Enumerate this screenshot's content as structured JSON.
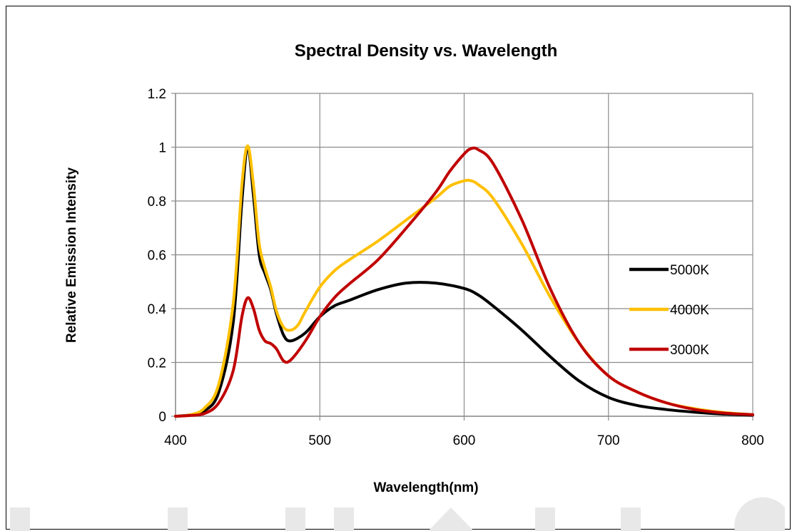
{
  "chart_data": {
    "type": "line",
    "title": "Spectral Density vs. Wavelength",
    "xlabel": "Wavelength(nm)",
    "ylabel": "Relative Emission Intensity",
    "xlim": [
      400,
      800
    ],
    "ylim": [
      0,
      1.2
    ],
    "x_ticks": [
      400,
      500,
      600,
      700,
      800
    ],
    "y_ticks": [
      0,
      0.2,
      0.4,
      0.6,
      0.8,
      1,
      1.2
    ],
    "x_tick_labels": [
      "400",
      "500",
      "600",
      "700",
      "800"
    ],
    "y_tick_labels": [
      "0",
      "0.2",
      "0.4",
      "0.6",
      "0.8",
      "1",
      "1.2"
    ],
    "grid": true,
    "legend_position": "right",
    "series": [
      {
        "name": "5000K",
        "color": "#000000",
        "points": [
          [
            400,
            0
          ],
          [
            410,
            0.005
          ],
          [
            420,
            0.02
          ],
          [
            430,
            0.09
          ],
          [
            440,
            0.35
          ],
          [
            446,
            0.8
          ],
          [
            450,
            1.0
          ],
          [
            454,
            0.82
          ],
          [
            458,
            0.6
          ],
          [
            462,
            0.53
          ],
          [
            466,
            0.47
          ],
          [
            470,
            0.38
          ],
          [
            475,
            0.3
          ],
          [
            480,
            0.28
          ],
          [
            490,
            0.31
          ],
          [
            500,
            0.37
          ],
          [
            510,
            0.41
          ],
          [
            520,
            0.43
          ],
          [
            540,
            0.47
          ],
          [
            560,
            0.495
          ],
          [
            580,
            0.495
          ],
          [
            600,
            0.475
          ],
          [
            610,
            0.45
          ],
          [
            620,
            0.41
          ],
          [
            640,
            0.32
          ],
          [
            660,
            0.22
          ],
          [
            680,
            0.13
          ],
          [
            700,
            0.07
          ],
          [
            720,
            0.04
          ],
          [
            740,
            0.025
          ],
          [
            760,
            0.015
          ],
          [
            780,
            0.008
          ],
          [
            800,
            0.004
          ]
        ]
      },
      {
        "name": "4000K",
        "color": "#FFC000",
        "points": [
          [
            400,
            0
          ],
          [
            410,
            0.005
          ],
          [
            420,
            0.03
          ],
          [
            430,
            0.12
          ],
          [
            440,
            0.42
          ],
          [
            446,
            0.86
          ],
          [
            450,
            1.005
          ],
          [
            454,
            0.86
          ],
          [
            458,
            0.64
          ],
          [
            462,
            0.55
          ],
          [
            466,
            0.48
          ],
          [
            470,
            0.39
          ],
          [
            475,
            0.33
          ],
          [
            480,
            0.32
          ],
          [
            485,
            0.34
          ],
          [
            490,
            0.39
          ],
          [
            500,
            0.48
          ],
          [
            510,
            0.54
          ],
          [
            520,
            0.58
          ],
          [
            540,
            0.65
          ],
          [
            560,
            0.73
          ],
          [
            580,
            0.81
          ],
          [
            590,
            0.855
          ],
          [
            600,
            0.875
          ],
          [
            605,
            0.875
          ],
          [
            610,
            0.86
          ],
          [
            620,
            0.81
          ],
          [
            640,
            0.64
          ],
          [
            660,
            0.44
          ],
          [
            680,
            0.27
          ],
          [
            700,
            0.15
          ],
          [
            720,
            0.09
          ],
          [
            740,
            0.05
          ],
          [
            760,
            0.028
          ],
          [
            780,
            0.014
          ],
          [
            800,
            0.006
          ]
        ]
      },
      {
        "name": "3000K",
        "color": "#C00000",
        "points": [
          [
            400,
            0
          ],
          [
            410,
            0.003
          ],
          [
            420,
            0.01
          ],
          [
            430,
            0.05
          ],
          [
            440,
            0.17
          ],
          [
            446,
            0.37
          ],
          [
            450,
            0.44
          ],
          [
            454,
            0.4
          ],
          [
            458,
            0.32
          ],
          [
            462,
            0.28
          ],
          [
            466,
            0.27
          ],
          [
            470,
            0.25
          ],
          [
            475,
            0.205
          ],
          [
            480,
            0.21
          ],
          [
            490,
            0.28
          ],
          [
            500,
            0.37
          ],
          [
            510,
            0.44
          ],
          [
            520,
            0.49
          ],
          [
            540,
            0.58
          ],
          [
            560,
            0.7
          ],
          [
            580,
            0.83
          ],
          [
            590,
            0.91
          ],
          [
            600,
            0.975
          ],
          [
            605,
            0.995
          ],
          [
            610,
            0.99
          ],
          [
            620,
            0.94
          ],
          [
            640,
            0.73
          ],
          [
            660,
            0.47
          ],
          [
            680,
            0.27
          ],
          [
            700,
            0.15
          ],
          [
            720,
            0.09
          ],
          [
            740,
            0.05
          ],
          [
            760,
            0.025
          ],
          [
            780,
            0.012
          ],
          [
            800,
            0.006
          ]
        ]
      }
    ]
  }
}
